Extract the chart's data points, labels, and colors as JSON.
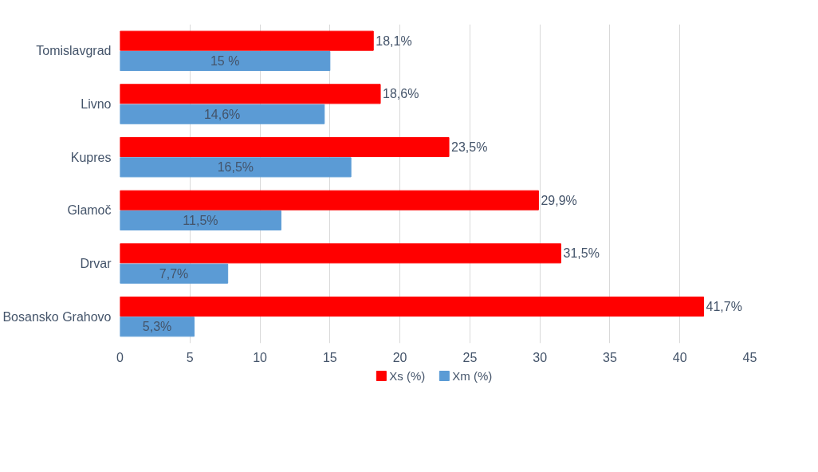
{
  "chart_data": {
    "type": "bar",
    "orientation": "horizontal",
    "categories": [
      "Tomislavgrad",
      "Livno",
      "Kupres",
      "Glamoč",
      "Drvar",
      "Bosansko Grahovo"
    ],
    "series": [
      {
        "name": "Xs (%)",
        "color": "#ff0000",
        "values": [
          18.1,
          18.6,
          23.5,
          29.9,
          31.5,
          41.7
        ],
        "value_labels": [
          "18,1%",
          "18,6%",
          "23,5%",
          "29,9%",
          "31,5%",
          "41,7%"
        ]
      },
      {
        "name": "Xm (%)",
        "color": "#5b9bd5",
        "values": [
          15,
          14.6,
          16.5,
          11.5,
          7.7,
          5.3
        ],
        "value_labels": [
          "15 %",
          "14,6%",
          "16,5%",
          "11,5%",
          "7,7%",
          "5,3%"
        ]
      }
    ],
    "xlim": [
      0,
      45
    ],
    "xticks": [
      0,
      5,
      10,
      15,
      20,
      25,
      30,
      35,
      40,
      45
    ],
    "grid": "x",
    "legend": "bottom"
  }
}
